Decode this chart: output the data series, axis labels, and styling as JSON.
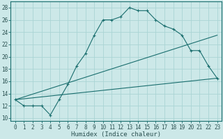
{
  "title": "",
  "xlabel": "Humidex (Indice chaleur)",
  "ylabel": "",
  "background_color": "#cce8e8",
  "grid_color": "#aad4d4",
  "line_color": "#1a6e6e",
  "xlim": [
    -0.5,
    23.5
  ],
  "ylim": [
    9.5,
    29
  ],
  "yticks": [
    10,
    12,
    14,
    16,
    18,
    20,
    22,
    24,
    26,
    28
  ],
  "xticks": [
    0,
    1,
    2,
    3,
    4,
    5,
    6,
    7,
    8,
    9,
    10,
    11,
    12,
    13,
    14,
    15,
    16,
    17,
    18,
    19,
    20,
    21,
    22,
    23
  ],
  "curve1_x": [
    0,
    1,
    2,
    3,
    4,
    5,
    6,
    7,
    8,
    9,
    10,
    11,
    12,
    13,
    14,
    15,
    16,
    17,
    18,
    19,
    20,
    21,
    22,
    23
  ],
  "curve1_y": [
    13,
    12,
    12,
    12,
    10.5,
    13,
    15.5,
    18.5,
    20.5,
    23.5,
    26,
    26,
    26.5,
    28,
    27.5,
    27.5,
    26,
    25,
    24.5,
    23.5,
    21.0,
    21.0,
    18.5,
    16.5
  ],
  "curve2_x": [
    0,
    23
  ],
  "curve2_y": [
    13,
    16.5
  ],
  "curve3_x": [
    0,
    23
  ],
  "curve3_y": [
    13,
    23.5
  ],
  "tick_fontsize": 5.5,
  "label_fontsize": 6.5
}
